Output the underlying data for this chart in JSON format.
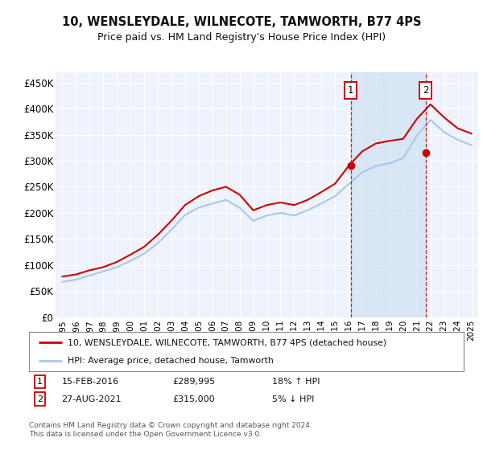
{
  "title": "10, WENSLEYDALE, WILNECOTE, TAMWORTH, B77 4PS",
  "subtitle": "Price paid vs. HM Land Registry's House Price Index (HPI)",
  "ylim": [
    0,
    470000
  ],
  "yticks": [
    0,
    50000,
    100000,
    150000,
    200000,
    250000,
    300000,
    350000,
    400000,
    450000
  ],
  "ytick_labels": [
    "£0",
    "£50K",
    "£100K",
    "£150K",
    "£200K",
    "£250K",
    "£300K",
    "£350K",
    "£400K",
    "£450K"
  ],
  "background_color": "#ffffff",
  "plot_bg_color": "#eef2fb",
  "grid_color": "#ffffff",
  "red_line_color": "#cc0000",
  "blue_line_color": "#a8c8e8",
  "marker1_date_idx": 21.15,
  "marker2_date_idx": 26.65,
  "marker1_value": 289995,
  "marker2_value": 315000,
  "sale1_date": "15-FEB-2016",
  "sale1_price": "£289,995",
  "sale1_hpi": "18% ↑ HPI",
  "sale2_date": "27-AUG-2021",
  "sale2_price": "£315,000",
  "sale2_hpi": "5% ↓ HPI",
  "legend_line1": "10, WENSLEYDALE, WILNECOTE, TAMWORTH, B77 4PS (detached house)",
  "legend_line2": "HPI: Average price, detached house, Tamworth",
  "footer": "Contains HM Land Registry data © Crown copyright and database right 2024.\nThis data is licensed under the Open Government Licence v3.0.",
  "years": [
    1995,
    1996,
    1997,
    1998,
    1999,
    2000,
    2001,
    2002,
    2003,
    2004,
    2005,
    2006,
    2007,
    2008,
    2009,
    2010,
    2011,
    2012,
    2013,
    2014,
    2015,
    2016,
    2017,
    2018,
    2019,
    2020,
    2021,
    2022,
    2023,
    2024,
    2025
  ],
  "hpi_values": [
    68000,
    72000,
    80000,
    88000,
    96000,
    108000,
    122000,
    142000,
    168000,
    196000,
    210000,
    218000,
    225000,
    210000,
    185000,
    195000,
    200000,
    195000,
    205000,
    218000,
    232000,
    255000,
    278000,
    290000,
    295000,
    305000,
    348000,
    378000,
    355000,
    340000,
    330000
  ],
  "red_values": [
    78000,
    82000,
    90000,
    96000,
    106000,
    120000,
    135000,
    158000,
    185000,
    215000,
    232000,
    243000,
    250000,
    235000,
    205000,
    215000,
    220000,
    215000,
    225000,
    240000,
    256000,
    290000,
    318000,
    333000,
    338000,
    342000,
    380000,
    408000,
    383000,
    362000,
    352000
  ]
}
